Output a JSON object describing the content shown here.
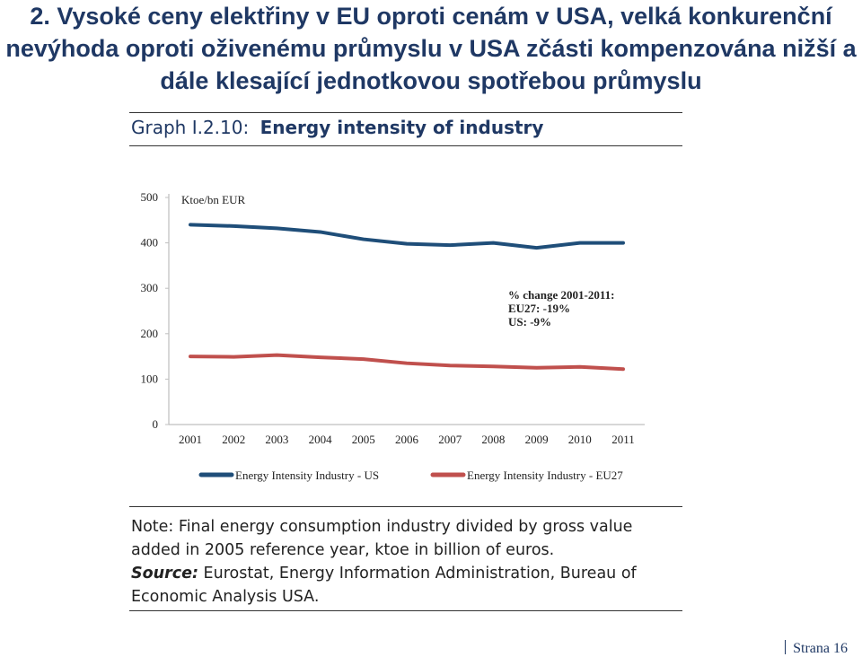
{
  "slide": {
    "title_line1": "2. Vysoké ceny elektřiny v EU oproti cenám v USA, velká konkurenční",
    "title_line2": "nevýhoda oproti oživenému průmyslu v USA zčásti kompenzována nižší a",
    "title_line3": "dále klesající jednotkovou spotřebou průmyslu",
    "page_label": "Strana 16"
  },
  "graph": {
    "label_prefix": "Graph I.2.10:",
    "label_title": "Energy intensity of industry"
  },
  "chart_data": {
    "type": "line",
    "ylabel": "Ktoe/bn EUR",
    "ylim": [
      0,
      500
    ],
    "yticks": [
      0,
      100,
      200,
      300,
      400,
      500
    ],
    "x": [
      "2001",
      "2002",
      "2003",
      "2004",
      "2005",
      "2006",
      "2007",
      "2008",
      "2009",
      "2010",
      "2011"
    ],
    "series": [
      {
        "name": "Energy Intensity Industry - US",
        "color": "#1f4e79",
        "values": [
          440,
          437,
          432,
          424,
          408,
          398,
          395,
          400,
          389,
          400,
          400
        ]
      },
      {
        "name": "Energy Intensity Industry - EU27",
        "color": "#c0504d",
        "values": [
          150,
          149,
          153,
          148,
          144,
          135,
          130,
          128,
          125,
          127,
          122
        ]
      }
    ],
    "annotation": [
      "% change 2001-2011:",
      "EU27: -19%",
      "US: -9%"
    ],
    "legend_position": "bottom"
  },
  "note": {
    "note_label": "Note:",
    "note_text": "Final energy consumption industry divided by gross value added in 2005 reference year, ktoe in billion of euros.",
    "source_label": "Source:",
    "source_text": "Eurostat, Energy Information Administration, Bureau of Economic Analysis USA."
  }
}
